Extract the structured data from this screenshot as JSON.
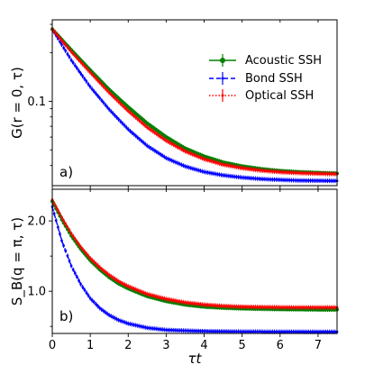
{
  "chart_data": [
    {
      "type": "line",
      "panel_label": "a)",
      "ylabel": "G(r = 0, τ)",
      "y_scale": "log",
      "ylim": [
        0.03,
        0.32
      ],
      "xlim": [
        0,
        7.5
      ],
      "x_ticks": [
        0,
        1,
        2,
        3,
        4,
        5,
        6,
        7
      ],
      "y_ticks": [
        0.1
      ],
      "y_tick_labels": [
        "0.1"
      ],
      "legend": {
        "placement": "top-right",
        "entries": [
          "Acoustic SSH",
          "Bond SSH",
          "Optical SSH"
        ]
      },
      "series": [
        {
          "name": "Acoustic SSH",
          "color": "#008000",
          "style": "solid",
          "marker": "circle",
          "x": [
            0,
            0.5,
            1,
            1.5,
            2,
            2.5,
            3,
            3.5,
            4,
            4.5,
            5,
            5.5,
            6,
            6.5,
            7,
            7.5
          ],
          "values": [
            0.28,
            0.208,
            0.156,
            0.118,
            0.092,
            0.073,
            0.06,
            0.051,
            0.0455,
            0.0418,
            0.0395,
            0.038,
            0.037,
            0.0364,
            0.036,
            0.0357
          ]
        },
        {
          "name": "Bond SSH",
          "color": "#0000ff",
          "style": "dashed",
          "marker": "point",
          "x": [
            0,
            0.5,
            1,
            1.5,
            2,
            2.5,
            3,
            3.5,
            4,
            4.5,
            5,
            5.5,
            6,
            6.5,
            7,
            7.5
          ],
          "values": [
            0.28,
            0.18,
            0.123,
            0.089,
            0.067,
            0.053,
            0.0445,
            0.0395,
            0.0365,
            0.0348,
            0.0337,
            0.033,
            0.0326,
            0.0323,
            0.0322,
            0.0321
          ]
        },
        {
          "name": "Optical SSH",
          "color": "#ff0000",
          "style": "dotted",
          "marker": "point",
          "x": [
            0,
            0.5,
            1,
            1.5,
            2,
            2.5,
            3,
            3.5,
            4,
            4.5,
            5,
            5.5,
            6,
            6.5,
            7,
            7.5
          ],
          "values": [
            0.28,
            0.203,
            0.151,
            0.113,
            0.087,
            0.069,
            0.057,
            0.049,
            0.0438,
            0.0405,
            0.0385,
            0.0372,
            0.0364,
            0.0359,
            0.0356,
            0.0354
          ]
        }
      ]
    },
    {
      "type": "line",
      "panel_label": "b)",
      "ylabel": "S_B(q = π, τ)",
      "y_scale": "linear",
      "ylim": [
        0.4,
        2.45
      ],
      "xlim": [
        0,
        7.5
      ],
      "x_ticks": [
        0,
        1,
        2,
        3,
        4,
        5,
        6,
        7
      ],
      "x_tick_labels": [
        "0",
        "1",
        "2",
        "3",
        "4",
        "5",
        "6",
        "7"
      ],
      "xlabel": "τt",
      "y_ticks": [
        1.0,
        2.0
      ],
      "y_tick_labels": [
        "1.0",
        "2.0"
      ],
      "series": [
        {
          "name": "Acoustic SSH",
          "color": "#008000",
          "style": "solid",
          "marker": "circle",
          "x": [
            0,
            0.25,
            0.5,
            0.75,
            1,
            1.25,
            1.5,
            1.75,
            2,
            2.5,
            3,
            3.5,
            4,
            4.5,
            5,
            5.5,
            6,
            6.5,
            7,
            7.5
          ],
          "values": [
            2.28,
            2.02,
            1.79,
            1.6,
            1.44,
            1.31,
            1.2,
            1.11,
            1.04,
            0.93,
            0.86,
            0.81,
            0.78,
            0.765,
            0.755,
            0.75,
            0.745,
            0.742,
            0.74,
            0.74
          ]
        },
        {
          "name": "Bond SSH",
          "color": "#0000ff",
          "style": "dashed",
          "marker": "point",
          "x": [
            0,
            0.25,
            0.5,
            0.75,
            1,
            1.25,
            1.5,
            1.75,
            2,
            2.5,
            3,
            3.5,
            4,
            4.5,
            5,
            5.5,
            6,
            6.5,
            7,
            7.5
          ],
          "values": [
            2.2,
            1.72,
            1.36,
            1.1,
            0.9,
            0.76,
            0.66,
            0.59,
            0.54,
            0.48,
            0.45,
            0.44,
            0.432,
            0.428,
            0.426,
            0.425,
            0.424,
            0.424,
            0.423,
            0.423
          ]
        },
        {
          "name": "Optical SSH",
          "color": "#ff0000",
          "style": "dotted",
          "marker": "point",
          "x": [
            0,
            0.25,
            0.5,
            0.75,
            1,
            1.25,
            1.5,
            1.75,
            2,
            2.5,
            3,
            3.5,
            4,
            4.5,
            5,
            5.5,
            6,
            6.5,
            7,
            7.5
          ],
          "values": [
            2.3,
            2.05,
            1.82,
            1.63,
            1.47,
            1.34,
            1.23,
            1.14,
            1.07,
            0.96,
            0.89,
            0.84,
            0.81,
            0.79,
            0.78,
            0.775,
            0.772,
            0.77,
            0.77,
            0.77
          ]
        }
      ]
    }
  ]
}
